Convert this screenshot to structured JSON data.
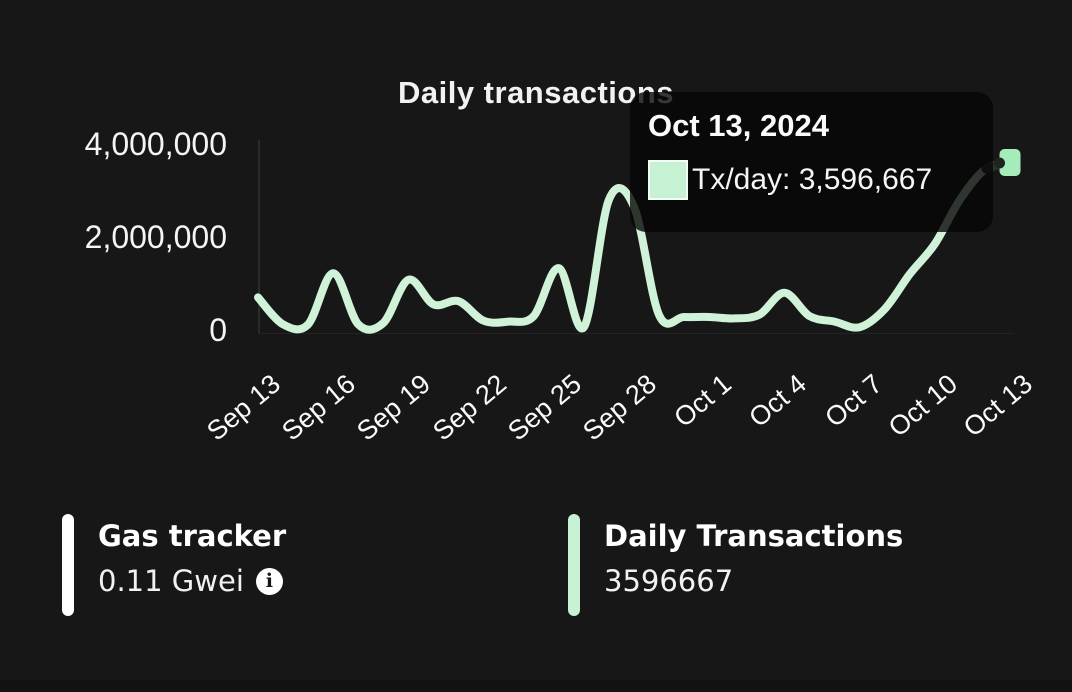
{
  "chart": {
    "title": "Daily transactions",
    "tooltip": {
      "date": "Oct 13, 2024",
      "value_text": "Tx/day: 3,596,667",
      "swatch_color": "#c6f1d3"
    }
  },
  "chart_data": {
    "type": "line",
    "title": "Daily transactions",
    "x": [
      "Sep 13",
      "Sep 14",
      "Sep 15",
      "Sep 16",
      "Sep 17",
      "Sep 18",
      "Sep 19",
      "Sep 20",
      "Sep 21",
      "Sep 22",
      "Sep 23",
      "Sep 24",
      "Sep 25",
      "Sep 26",
      "Sep 27",
      "Sep 28",
      "Sep 29",
      "Sep 30",
      "Oct 1",
      "Oct 2",
      "Oct 3",
      "Oct 4",
      "Oct 5",
      "Oct 6",
      "Oct 7",
      "Oct 8",
      "Oct 9",
      "Oct 10",
      "Oct 11",
      "Oct 12",
      "Oct 13"
    ],
    "series": [
      {
        "name": "Tx/day",
        "values": [
          700000,
          120000,
          120000,
          1220000,
          120000,
          150000,
          1080000,
          550000,
          620000,
          200000,
          180000,
          300000,
          1330000,
          60000,
          2800000,
          2650000,
          320000,
          280000,
          280000,
          250000,
          330000,
          800000,
          300000,
          180000,
          60000,
          450000,
          1200000,
          1850000,
          2800000,
          3450000,
          3596667
        ]
      }
    ],
    "x_tick_labels": [
      "Sep 13",
      "Sep 16",
      "Sep 19",
      "Sep 22",
      "Sep 25",
      "Sep 28",
      "Oct 1",
      "Oct 4",
      "Oct 7",
      "Oct 10",
      "Oct 13"
    ],
    "x_tick_indices": [
      0,
      3,
      6,
      9,
      12,
      15,
      18,
      21,
      24,
      27,
      30
    ],
    "y_tick_labels": [
      "0",
      "2,000,000",
      "4,000,000"
    ],
    "y_tick_values": [
      0,
      2000000,
      4000000
    ],
    "ylim": [
      0,
      4000000
    ],
    "grid": false,
    "legend": false,
    "line_color": "#cff2d8",
    "marker_color": "#a6ecba",
    "highlighted_point": {
      "x": "Oct 13",
      "value": 3596667
    }
  },
  "stats": {
    "gas": {
      "title": "Gas tracker",
      "value": "0.11 Gwei",
      "info_icon": "i"
    },
    "daily_tx": {
      "title": "Daily Transactions",
      "value": "3596667"
    }
  },
  "colors": {
    "background": "#171717",
    "line": "#cff2d8",
    "marker": "#a6ecba",
    "tooltip_bg": "rgba(6,6,6,0.8)",
    "white_bar": "#ffffff",
    "green_bar": "#c6f2d3"
  }
}
